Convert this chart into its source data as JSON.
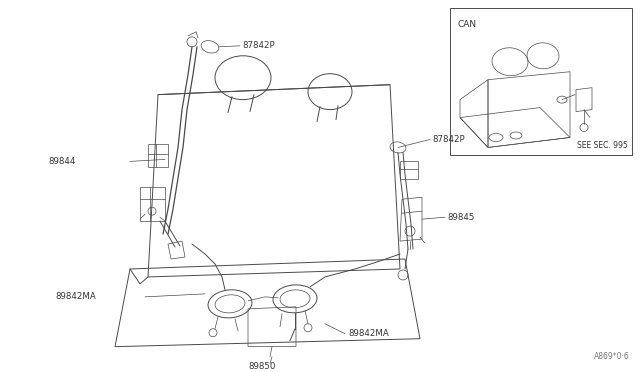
{
  "background_color": "#ffffff",
  "line_color": "#4a4a4a",
  "label_color": "#333333",
  "fig_width": 6.4,
  "fig_height": 3.72,
  "dpi": 100,
  "font_size_labels": 6.2,
  "font_size_can": 6.5,
  "font_size_ref": 5.5,
  "labels": {
    "87842P_top": "87842P",
    "89844": "89844",
    "87842P_right": "87842P",
    "89845": "89845",
    "89842MA_left": "89842MA",
    "89850": "89850",
    "89842MA_right": "89842MA",
    "can": "CAN",
    "see_sec": "SEE SEC. 995",
    "ref": "A869*0·6"
  }
}
